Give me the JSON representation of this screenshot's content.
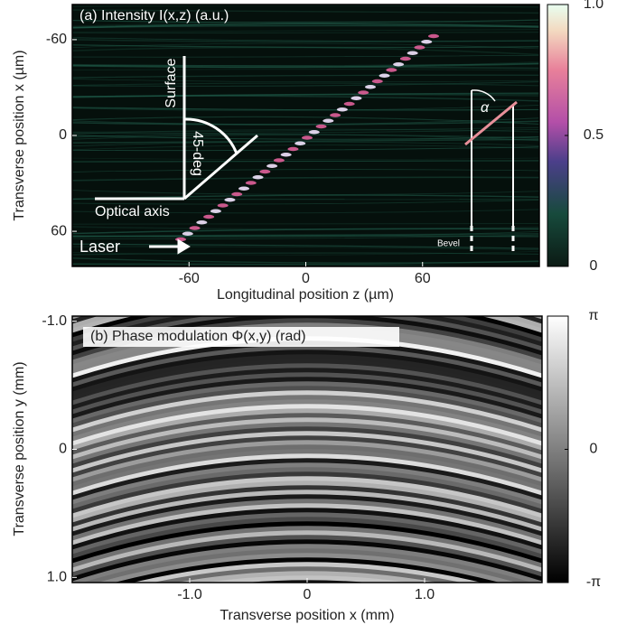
{
  "chart_data": [
    {
      "type": "heatmap",
      "title": "(a) Intensity I(x,z) (a.u.)",
      "x_label": "Longitudinal position z (µm)",
      "y_label": "Transverse position x (µm)",
      "xlim": [
        -120,
        120
      ],
      "xticks": [
        -60,
        0,
        60
      ],
      "ylim": [
        82,
        -82
      ],
      "yticks": [
        -60,
        0,
        60
      ],
      "clim": [
        0,
        1
      ],
      "cticks": [
        0,
        0.5,
        {
          "value": 1,
          "label": "1.0"
        }
      ],
      "annotations": [
        "Surface",
        "45-deg",
        "Optical axis",
        "Laser",
        "α",
        "Bevel"
      ]
    },
    {
      "type": "heatmap",
      "title": "(b) Phase modulation Φ(x,y) (rad)",
      "x_label": "Transverse position x (mm)",
      "y_label": "Transverse position y (mm)",
      "xlim": [
        -2,
        2
      ],
      "xticks": [
        {
          "value": -1,
          "label": "-1.0"
        },
        0,
        {
          "value": 1,
          "label": "1.0"
        }
      ],
      "ylim": [
        1.04,
        -1.04
      ],
      "yticks": [
        {
          "value": -1,
          "label": "-1.0"
        },
        0,
        {
          "value": 1,
          "label": "1.0"
        }
      ],
      "clim": [
        -3.14159,
        3.14159
      ],
      "cticks": [
        {
          "value": -3.14159,
          "label": "-π"
        },
        0,
        {
          "value": 3.14159,
          "label": "π"
        }
      ]
    }
  ]
}
